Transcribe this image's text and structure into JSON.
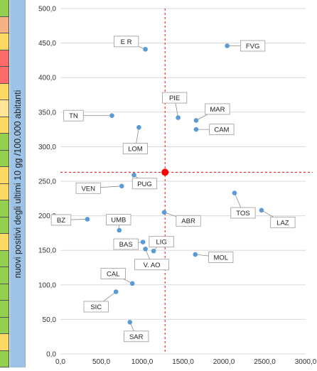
{
  "strip_colors": [
    "#92d050",
    "#f4b183",
    "#ffd966",
    "#ff6b6b",
    "#ff6b6b",
    "#ffd966",
    "#ffe699",
    "#ffd966",
    "#92d050",
    "#92d050",
    "#ffd966",
    "#ffd966",
    "#92d050",
    "#92d050",
    "#ffd966",
    "#92d050",
    "#92d050",
    "#92d050",
    "#92d050",
    "#92d050",
    "#ffd966",
    "#92d050"
  ],
  "chart_data": {
    "type": "scatter",
    "ylabel": "nuovi positivi degli ultimi 10 gg /100.000 abitanti",
    "xlabel": "",
    "xlim": [
      0,
      3000
    ],
    "ylim": [
      0,
      500
    ],
    "xticks": [
      "0,0",
      "500,0",
      "1000,0",
      "1500,0",
      "2000,0",
      "2500,0",
      "3000,0"
    ],
    "yticks": [
      "0,0",
      "50,0",
      "100,0",
      "150,0",
      "200,0",
      "250,0",
      "300,0",
      "350,0",
      "400,0",
      "450,0",
      "500,0"
    ],
    "grid": "horizontal",
    "point_color": "#5b9bd5",
    "reference": {
      "x": 1280,
      "y": 263,
      "color": "#ff0000"
    },
    "points": [
      {
        "label": "E R",
        "x": 1040,
        "y": 441
      },
      {
        "label": "FVG",
        "x": 2040,
        "y": 446
      },
      {
        "label": "PIE",
        "x": 1440,
        "y": 342
      },
      {
        "label": "MAR",
        "x": 1660,
        "y": 338
      },
      {
        "label": "CAM",
        "x": 1660,
        "y": 325
      },
      {
        "label": "TN",
        "x": 630,
        "y": 345
      },
      {
        "label": "LOM",
        "x": 960,
        "y": 328
      },
      {
        "label": "PUG",
        "x": 900,
        "y": 259
      },
      {
        "label": "VEN",
        "x": 750,
        "y": 243
      },
      {
        "label": "TOS",
        "x": 2130,
        "y": 233
      },
      {
        "label": "LAZ",
        "x": 2460,
        "y": 208
      },
      {
        "label": "ABR",
        "x": 1270,
        "y": 205
      },
      {
        "label": "UMB",
        "x": 720,
        "y": 179
      },
      {
        "label": "BZ",
        "x": 330,
        "y": 195
      },
      {
        "label": "LIG",
        "x": 1140,
        "y": 149
      },
      {
        "label": "BAS",
        "x": 1010,
        "y": 162
      },
      {
        "label": "V. AO",
        "x": 1040,
        "y": 152
      },
      {
        "label": "MOL",
        "x": 1650,
        "y": 144
      },
      {
        "label": "CAL",
        "x": 880,
        "y": 102
      },
      {
        "label": "SIC",
        "x": 680,
        "y": 90
      },
      {
        "label": "SAR",
        "x": 850,
        "y": 46
      }
    ]
  }
}
